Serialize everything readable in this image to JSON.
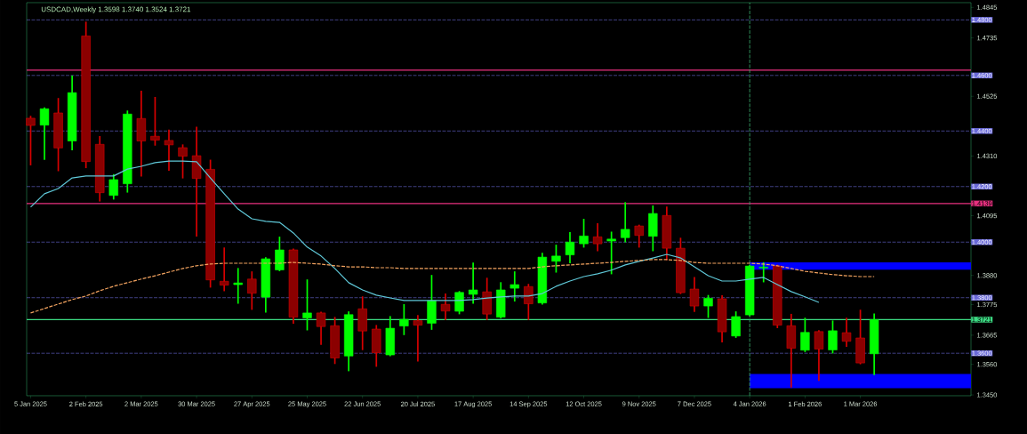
{
  "chart_data": {
    "type": "candlestick",
    "title": "USDCAD,Weekly  1.3598 1.3740 1.3524 1.3721",
    "x": [
      "2025-01-05",
      "2025-01-12",
      "2025-01-19",
      "2025-01-26",
      "2025-02-02",
      "2025-02-09",
      "2025-02-16",
      "2025-02-23",
      "2025-03-02",
      "2025-03-09",
      "2025-03-16",
      "2025-03-23",
      "2025-03-30",
      "2025-04-06",
      "2025-04-13",
      "2025-04-20",
      "2025-04-27",
      "2025-05-04",
      "2025-05-11",
      "2025-05-18",
      "2025-05-25",
      "2025-06-01",
      "2025-06-08",
      "2025-06-15",
      "2025-06-22",
      "2025-06-29",
      "2025-07-06",
      "2025-07-13",
      "2025-07-20",
      "2025-07-27",
      "2025-08-03",
      "2025-08-10",
      "2025-08-17",
      "2025-08-24",
      "2025-08-31",
      "2025-09-07",
      "2025-09-14",
      "2025-09-21",
      "2025-09-28",
      "2025-10-05",
      "2025-10-12",
      "2025-10-19",
      "2025-10-26",
      "2025-11-02",
      "2025-11-09",
      "2025-11-16",
      "2025-11-23",
      "2025-11-30",
      "2025-12-07",
      "2025-12-14",
      "2025-12-21",
      "2025-12-28",
      "2026-01-04",
      "2026-01-11",
      "2026-01-18",
      "2026-01-25",
      "2026-02-01",
      "2026-02-08",
      "2026-02-15",
      "2026-02-22",
      "2026-03-01",
      "2026-03-08"
    ],
    "ohlc": [
      [
        1.4446,
        1.4452,
        1.4279,
        1.442
      ],
      [
        1.4421,
        1.4482,
        1.4299,
        1.448
      ],
      [
        1.4465,
        1.4516,
        1.4258,
        1.4339
      ],
      [
        1.4364,
        1.4597,
        1.4333,
        1.4538
      ],
      [
        1.4742,
        1.4791,
        1.4269,
        1.429
      ],
      [
        1.4352,
        1.4379,
        1.4149,
        1.4178
      ],
      [
        1.4168,
        1.4242,
        1.4156,
        1.4225
      ],
      [
        1.421,
        1.4471,
        1.4181,
        1.4461
      ],
      [
        1.4445,
        1.4542,
        1.4239,
        1.4364
      ],
      [
        1.4381,
        1.452,
        1.435,
        1.4367
      ],
      [
        1.4366,
        1.4402,
        1.426,
        1.435
      ],
      [
        1.434,
        1.4349,
        1.4232,
        1.4309
      ],
      [
        1.4311,
        1.4413,
        1.4023,
        1.4229
      ],
      [
        1.4262,
        1.4294,
        1.3839,
        1.3864
      ],
      [
        1.3859,
        1.3978,
        1.3826,
        1.3845
      ],
      [
        1.3847,
        1.3904,
        1.3781,
        1.3853
      ],
      [
        1.3867,
        1.3892,
        1.3759,
        1.3816
      ],
      [
        1.3802,
        1.3943,
        1.3749,
        1.394
      ],
      [
        1.39,
        1.4017,
        1.3898,
        1.3972
      ],
      [
        1.3972,
        1.3974,
        1.3709,
        1.373
      ],
      [
        1.3727,
        1.3863,
        1.3685,
        1.3745
      ],
      [
        1.3745,
        1.3747,
        1.3633,
        1.3696
      ],
      [
        1.3699,
        1.3728,
        1.3564,
        1.3583
      ],
      [
        1.359,
        1.3748,
        1.3538,
        1.3739
      ],
      [
        1.376,
        1.3802,
        1.3614,
        1.368
      ],
      [
        1.3687,
        1.3699,
        1.3554,
        1.3602
      ],
      [
        1.3594,
        1.3731,
        1.3592,
        1.369
      ],
      [
        1.3698,
        1.3774,
        1.3668,
        1.3722
      ],
      [
        1.3717,
        1.3735,
        1.3573,
        1.3701
      ],
      [
        1.3708,
        1.3879,
        1.3687,
        1.3789
      ],
      [
        1.3776,
        1.3812,
        1.3722,
        1.3752
      ],
      [
        1.3751,
        1.3821,
        1.3743,
        1.3819
      ],
      [
        1.3812,
        1.3924,
        1.3781,
        1.3828
      ],
      [
        1.3821,
        1.3869,
        1.3722,
        1.3741
      ],
      [
        1.373,
        1.3853,
        1.3728,
        1.3828
      ],
      [
        1.3834,
        1.3892,
        1.3789,
        1.3847
      ],
      [
        1.384,
        1.3847,
        1.3722,
        1.3778
      ],
      [
        1.3781,
        1.3959,
        1.3778,
        1.3946
      ],
      [
        1.3931,
        1.3988,
        1.3893,
        1.395
      ],
      [
        1.3954,
        1.4033,
        1.3927,
        1.4
      ],
      [
        1.3994,
        1.4081,
        1.3983,
        1.4022
      ],
      [
        1.4019,
        1.4065,
        1.397,
        1.3994
      ],
      [
        1.4004,
        1.4035,
        1.3887,
        1.4011
      ],
      [
        1.4016,
        1.4141,
        1.4002,
        1.4046
      ],
      [
        1.4058,
        1.406,
        1.3983,
        1.4024
      ],
      [
        1.4021,
        1.4129,
        1.397,
        1.4103
      ],
      [
        1.4096,
        1.4125,
        1.3938,
        1.3978
      ],
      [
        1.3978,
        1.4013,
        1.3816,
        1.3818
      ],
      [
        1.3831,
        1.3872,
        1.3751,
        1.377
      ],
      [
        1.377,
        1.3807,
        1.373,
        1.3798
      ],
      [
        1.3796,
        1.3806,
        1.3642,
        1.3677
      ],
      [
        1.3662,
        1.3748,
        1.3658,
        1.3732
      ],
      [
        1.3738,
        1.3916,
        1.3736,
        1.3914
      ],
      [
        1.3907,
        1.3925,
        1.3858,
        1.391
      ],
      [
        1.3914,
        1.3916,
        1.3693,
        1.3701
      ],
      [
        1.3699,
        1.3739,
        1.3479,
        1.3618
      ],
      [
        1.3611,
        1.3725,
        1.3607,
        1.3675
      ],
      [
        1.3678,
        1.368,
        1.3503,
        1.3615
      ],
      [
        1.3612,
        1.3715,
        1.3602,
        1.3681
      ],
      [
        1.3674,
        1.3725,
        1.3626,
        1.3643
      ],
      [
        1.3655,
        1.3754,
        1.3563,
        1.3565
      ],
      [
        1.3598,
        1.374,
        1.3524,
        1.3721
      ]
    ],
    "colors": [
      "#8b0000",
      "#00ff00",
      "#8b0000",
      "#00ff00",
      "#8b0000",
      "#8b0000",
      "#00ff00",
      "#00ff00",
      "#8b0000",
      "#8b0000",
      "#8b0000",
      "#8b0000",
      "#8b0000",
      "#8b0000",
      "#8b0000",
      "#00ff00",
      "#8b0000",
      "#00ff00",
      "#00ff00",
      "#8b0000",
      "#00ff00",
      "#8b0000",
      "#8b0000",
      "#00ff00",
      "#8b0000",
      "#8b0000",
      "#00ff00",
      "#00ff00",
      "#8b0000",
      "#00ff00",
      "#8b0000",
      "#00ff00",
      "#00ff00",
      "#8b0000",
      "#00ff00",
      "#00ff00",
      "#8b0000",
      "#00ff00",
      "#00ff00",
      "#00ff00",
      "#00ff00",
      "#8b0000",
      "#00ff00",
      "#00ff00",
      "#8b0000",
      "#00ff00",
      "#8b0000",
      "#8b0000",
      "#8b0000",
      "#00ff00",
      "#8b0000",
      "#00ff00",
      "#00ff00",
      "#00ff00",
      "#8b0000",
      "#8b0000",
      "#00ff00",
      "#8b0000",
      "#00ff00",
      "#8b0000",
      "#8b0000",
      "#00ff00"
    ],
    "series": [
      {
        "type": "line",
        "color": "#5fc8d8",
        "line_style": "solid",
        "x": [
          "2025-01-05",
          "2025-01-12",
          "2025-01-19",
          "2025-01-26",
          "2025-02-02",
          "2025-02-09",
          "2025-02-16",
          "2025-02-23",
          "2025-03-02",
          "2025-03-09",
          "2025-03-16",
          "2025-03-23",
          "2025-03-30",
          "2025-04-06",
          "2025-04-13",
          "2025-04-20",
          "2025-04-27",
          "2025-05-04",
          "2025-05-11",
          "2025-05-18",
          "2025-05-25",
          "2025-06-01",
          "2025-06-08",
          "2025-06-15",
          "2025-06-22",
          "2025-06-29",
          "2025-07-06",
          "2025-07-13",
          "2025-07-20",
          "2025-07-27",
          "2025-08-03",
          "2025-08-10",
          "2025-08-17",
          "2025-08-24",
          "2025-08-31",
          "2025-09-07",
          "2025-09-14",
          "2025-09-21",
          "2025-09-28",
          "2025-10-05",
          "2025-10-12",
          "2025-10-19",
          "2025-10-26",
          "2025-11-02",
          "2025-11-09",
          "2025-11-16",
          "2025-11-23",
          "2025-11-30",
          "2025-12-07",
          "2025-12-14",
          "2025-12-21",
          "2025-12-28",
          "2026-01-04",
          "2026-01-11",
          "2026-01-18",
          "2026-01-25",
          "2026-02-01",
          "2026-02-08"
        ],
        "values": [
          1.4126,
          1.4174,
          1.4193,
          1.4231,
          1.4238,
          1.4238,
          1.4238,
          1.4263,
          1.4273,
          1.4286,
          1.4292,
          1.4292,
          1.4289,
          1.4231,
          1.4174,
          1.4119,
          1.4084,
          1.4075,
          1.4071,
          1.4033,
          1.3982,
          1.395,
          1.3905,
          1.3854,
          1.3828,
          1.3809,
          1.3799,
          1.379,
          1.379,
          1.379,
          1.379,
          1.379,
          1.3793,
          1.3799,
          1.3803,
          1.3806,
          1.3806,
          1.3815,
          1.3841,
          1.386,
          1.3876,
          1.3886,
          1.3899,
          1.3918,
          1.3931,
          1.3943,
          1.3956,
          1.3943,
          1.3911,
          1.3879,
          1.386,
          1.386,
          1.3867,
          1.3873,
          1.3847,
          1.3822,
          1.3803,
          1.3783
        ]
      },
      {
        "type": "line",
        "color": "#f4a460",
        "line_style": "dashed",
        "values": [
          1.3745,
          1.3761,
          1.3777,
          1.3793,
          1.3806,
          1.3825,
          1.3841,
          1.3854,
          1.3867,
          1.3879,
          1.3892,
          1.3905,
          1.3915,
          1.3921,
          1.3924,
          1.3924,
          1.3924,
          1.3924,
          1.3924,
          1.3927,
          1.3924,
          1.3921,
          1.3915,
          1.3911,
          1.3911,
          1.3908,
          1.3908,
          1.3905,
          1.3905,
          1.3905,
          1.3905,
          1.3905,
          1.3905,
          1.3905,
          1.3905,
          1.3905,
          1.3905,
          1.3911,
          1.3915,
          1.3918,
          1.3921,
          1.3924,
          1.3927,
          1.3931,
          1.3934,
          1.3937,
          1.3937,
          1.3934,
          1.3927,
          1.3924,
          1.3924,
          1.3924,
          1.3924,
          1.3921,
          1.3915,
          1.3905,
          1.3895,
          1.3889,
          1.3883,
          1.3879,
          1.3876,
          1.3876
        ]
      }
    ],
    "xlim": [
      "2025-01-03",
      "2026-04-26"
    ],
    "xticks": [
      {
        "value": "2025-01-05",
        "label": "5 Jan 2025"
      },
      {
        "value": "2025-02-02",
        "label": "2 Feb 2025"
      },
      {
        "value": "2025-03-02",
        "label": "2 Mar 2025"
      },
      {
        "value": "2025-03-30",
        "label": "30 Mar 2025"
      },
      {
        "value": "2025-04-27",
        "label": "27 Apr 2025"
      },
      {
        "value": "2025-05-25",
        "label": "25 May 2025"
      },
      {
        "value": "2025-06-22",
        "label": "22 Jun 2025"
      },
      {
        "value": "2025-07-20",
        "label": "20 Jul 2025"
      },
      {
        "value": "2025-08-17",
        "label": "17 Aug 2025"
      },
      {
        "value": "2025-09-14",
        "label": "14 Sep 2025"
      },
      {
        "value": "2025-10-12",
        "label": "12 Oct 2025"
      },
      {
        "value": "2025-11-09",
        "label": "9 Nov 2025"
      },
      {
        "value": "2025-12-07",
        "label": "7 Dec 2025"
      },
      {
        "value": "2026-01-04",
        "label": "4 Jan 2026"
      },
      {
        "value": "2026-02-01",
        "label": "1 Feb 2026"
      },
      {
        "value": "2026-03-01",
        "label": "1 Mar 2026"
      }
    ],
    "ylim": [
      1.3447,
      1.4862
    ],
    "yticks": [
      {
        "value": 1.4845,
        "label": "1.4845"
      },
      {
        "value": 1.4735,
        "label": "1.4735"
      },
      {
        "value": 1.4525,
        "label": "1.4525"
      },
      {
        "value": 1.431,
        "label": "1.4310"
      },
      {
        "value": 1.4095,
        "label": "1.4095"
      },
      {
        "value": 1.388,
        "label": "1.3880"
      },
      {
        "value": 1.3775,
        "label": "1.3775"
      },
      {
        "value": 1.3665,
        "label": "1.3665"
      },
      {
        "value": 1.356,
        "label": "1.3560"
      },
      {
        "value": 1.345,
        "label": "1.3450"
      }
    ],
    "ref_lines": [
      {
        "axis": "y",
        "value": 1.48,
        "label": "1.4800",
        "color": "#6a6ad8",
        "line_style": "dashed"
      },
      {
        "axis": "y",
        "value": 1.46,
        "label": "1.4600",
        "color": "#6a6ad8",
        "line_style": "dashed"
      },
      {
        "axis": "y",
        "value": 1.44,
        "label": "1.4400",
        "color": "#6a6ad8",
        "line_style": "dashed"
      },
      {
        "axis": "y",
        "value": 1.42,
        "label": "1.4200",
        "color": "#6a6ad8",
        "line_style": "dashed"
      },
      {
        "axis": "y",
        "value": 1.4,
        "label": "1.4000",
        "color": "#6a6ad8",
        "line_style": "dashed"
      },
      {
        "axis": "y",
        "value": 1.38,
        "label": "1.3800",
        "color": "#6a6ad8",
        "line_style": "dashed"
      },
      {
        "axis": "y",
        "value": 1.36,
        "label": "1.3600",
        "color": "#6a6ad8",
        "line_style": "dashed"
      },
      {
        "axis": "y",
        "value": 1.4619,
        "label": null,
        "color": "#e8307f",
        "line_style": "solid"
      },
      {
        "axis": "y",
        "value": 1.4139,
        "label": "1.4139",
        "color": "#e8307f",
        "line_style": "solid"
      },
      {
        "axis": "y",
        "value": 1.3721,
        "label": "1.3721",
        "color": "#3ddc84",
        "line_style": "solid"
      },
      {
        "axis": "x",
        "value": "2026-01-04",
        "label": null,
        "color": "#3cb371",
        "line_style": "dashed"
      }
    ],
    "bands": [
      {
        "axis": "y",
        "from": 1.3901,
        "to": 1.3927,
        "label": null,
        "color": "#0000ff"
      },
      {
        "axis": "y",
        "from": 1.3474,
        "to": 1.3525,
        "label": null,
        "color": "#0000ff"
      }
    ]
  }
}
